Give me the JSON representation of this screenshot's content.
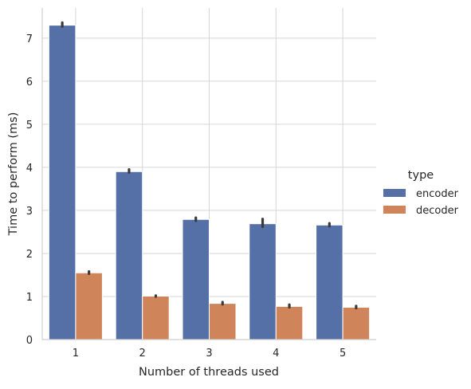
{
  "chart_data": {
    "type": "bar",
    "title": "",
    "xlabel": "Number of threads used",
    "ylabel": "Time to perform (ms)",
    "categories": [
      "1",
      "2",
      "3",
      "4",
      "5"
    ],
    "ylim": [
      0,
      7.7
    ],
    "yticks": [
      0,
      1,
      2,
      3,
      4,
      5,
      6,
      7
    ],
    "grid": true,
    "legend": {
      "title": "type",
      "placement": "right"
    },
    "series": [
      {
        "name": "encoder",
        "color": "#5470a6",
        "values": [
          7.3,
          3.9,
          2.79,
          2.69,
          2.66
        ],
        "err_low": [
          7.27,
          3.88,
          2.76,
          2.62,
          2.63
        ],
        "err_high": [
          7.36,
          3.95,
          2.83,
          2.8,
          2.7
        ]
      },
      {
        "name": "decoder",
        "color": "#cf8459",
        "values": [
          1.55,
          1.01,
          0.84,
          0.77,
          0.75
        ],
        "err_low": [
          1.53,
          1.0,
          0.82,
          0.75,
          0.73
        ],
        "err_high": [
          1.58,
          1.02,
          0.87,
          0.81,
          0.78
        ]
      }
    ]
  }
}
